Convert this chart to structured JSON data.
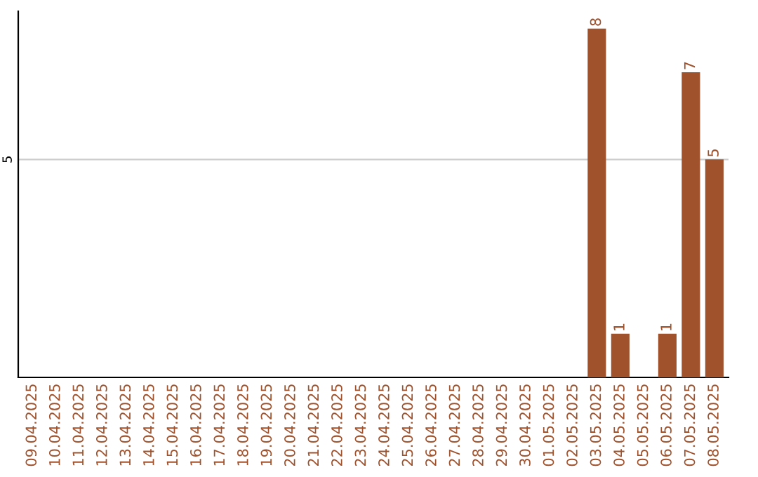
{
  "chart_data": {
    "type": "bar",
    "categories": [
      "09.04.2025",
      "10.04.2025",
      "11.04.2025",
      "12.04.2025",
      "13.04.2025",
      "14.04.2025",
      "15.04.2025",
      "16.04.2025",
      "17.04.2025",
      "18.04.2025",
      "19.04.2025",
      "20.04.2025",
      "21.04.2025",
      "22.04.2025",
      "23.04.2025",
      "24.04.2025",
      "25.04.2025",
      "26.04.2025",
      "27.04.2025",
      "28.04.2025",
      "29.04.2025",
      "30.04.2025",
      "01.05.2025",
      "02.05.2025",
      "03.05.2025",
      "04.05.2025",
      "05.05.2025",
      "06.05.2025",
      "07.05.2025",
      "08.05.2025"
    ],
    "values": [
      null,
      null,
      null,
      null,
      null,
      null,
      null,
      null,
      null,
      null,
      null,
      null,
      null,
      null,
      null,
      null,
      null,
      null,
      null,
      null,
      null,
      null,
      null,
      null,
      8,
      1,
      null,
      1,
      7,
      5
    ],
    "data_labels": true,
    "color": "#a0522d",
    "ylim": [
      0,
      8.4
    ],
    "yticks": [
      5
    ],
    "grid": "y"
  }
}
